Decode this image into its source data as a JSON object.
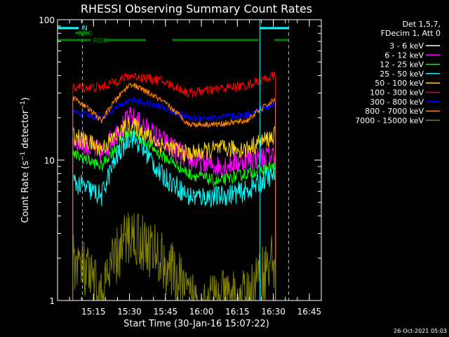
{
  "chart_data": {
    "type": "line",
    "title": "RHESSI Observing Summary Count Rates",
    "xlabel": "Start Time (30-Jan-16 15:07:22)",
    "ylabel": "Count Rate (s⁻¹ detector⁻¹)",
    "ylabel_parts": [
      "Count Rate (s",
      "−1",
      " detector",
      "−1",
      ")"
    ],
    "y_scale": "log",
    "ylim": [
      1,
      100
    ],
    "xlim_minutes": [
      -7.37,
      50
    ],
    "y_ticks": [
      {
        "value": 1,
        "label": "1"
      },
      {
        "value": 10,
        "label": "10"
      },
      {
        "value": 100,
        "label": "100"
      }
    ],
    "x_ticks": [
      {
        "t": 7.63,
        "label": "15:15"
      },
      {
        "t": 22.63,
        "label": "15:30"
      },
      {
        "t": 37.63,
        "label": "15:45"
      },
      {
        "t": 52.63,
        "label": "16:00"
      },
      {
        "t": 67.63,
        "label": "16:15"
      },
      {
        "t": 82.63,
        "label": "16:30"
      },
      {
        "t": 97.63,
        "label": "16:45"
      }
    ],
    "x_tick_times_minutes": [
      7.63,
      22.63,
      37.63,
      52.63,
      67.63,
      82.63,
      97.63
    ],
    "x_range_minutes": [
      -7.37,
      102.63
    ],
    "grid": false,
    "legend_header": [
      "Det 1,5,7,",
      "FDecim 1, Att 0"
    ],
    "series": [
      {
        "name": "3 - 6 keV",
        "color": "#000000",
        "base": [
          30,
          30,
          42,
          38,
          28,
          28,
          30,
          38
        ],
        "noise": 0.06
      },
      {
        "name": "6 - 12 keV",
        "color": "#ff00ff",
        "base": [
          14,
          11,
          20,
          14,
          10,
          9,
          10,
          11
        ],
        "noise": 0.2
      },
      {
        "name": "12 - 25 keV",
        "color": "#00ff00",
        "base": [
          11,
          9,
          16,
          11,
          8,
          7,
          8,
          9
        ],
        "noise": 0.1
      },
      {
        "name": "25 - 50 keV",
        "color": "#00ffff",
        "base": [
          7,
          5.5,
          15,
          8,
          5.5,
          5.5,
          6,
          8
        ],
        "noise": 0.18
      },
      {
        "name": "50 - 100 keV",
        "color": "#ffd700",
        "base": [
          15,
          12,
          18,
          13,
          11,
          12,
          12,
          15
        ],
        "noise": 0.15
      },
      {
        "name": "100 - 300 keV",
        "color": "#ff0000",
        "base": [
          33,
          33,
          40,
          37,
          30,
          32,
          34,
          40
        ],
        "noise": 0.08
      },
      {
        "name": "300 - 800 keV",
        "color": "#0000ff",
        "base": [
          22,
          20,
          27,
          24,
          20,
          20,
          21,
          25
        ],
        "noise": 0.06
      },
      {
        "name": "800 - 7000 keV",
        "color": "#ff8000",
        "base": [
          28,
          19,
          35,
          27,
          18,
          18,
          19,
          27
        ],
        "noise": 0.05
      },
      {
        "name": "7000 - 15000 keV",
        "color": "#808000",
        "base": [
          2,
          1,
          3,
          2,
          1,
          1,
          1,
          2
        ],
        "noise": 0.5
      }
    ],
    "series_time_range_minutes": [
      -1,
      83.5
    ],
    "legend": "top-right outside plot",
    "annotations": {
      "attenuator_bars": [
        {
          "label": "N",
          "color": "#00ffff",
          "segments": [
            [
              -7.37,
              1.5
            ],
            [
              77,
              89
            ]
          ]
        },
        {
          "label": "RD0",
          "color": "#008000",
          "segments": [
            [
              0,
              6
            ]
          ]
        },
        {
          "label": "RD6",
          "color": "#008000",
          "segments": [
            [
              -7.37,
              6.5
            ],
            [
              12,
              29.5
            ],
            [
              40.5,
              76.5
            ],
            [
              83,
              89
            ]
          ]
        }
      ],
      "vertical_lines": [
        {
          "t": -7.37,
          "color": "#00ffff",
          "style": "solid"
        },
        {
          "t": 3,
          "color": "#00ffff",
          "style": "dashed"
        },
        {
          "t": 77,
          "color": "#00ffff",
          "style": "solid"
        },
        {
          "t": 89,
          "color": "#00ffff",
          "style": "dashed"
        }
      ]
    },
    "timestamp": "26-Oct-2021 05:03"
  }
}
